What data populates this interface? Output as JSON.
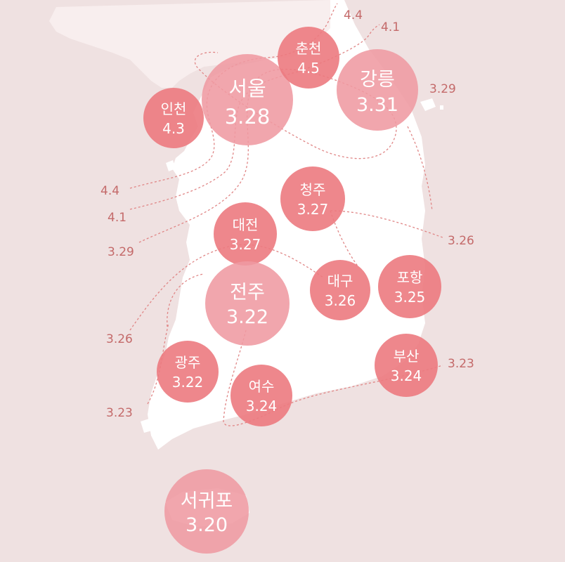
{
  "colors": {
    "background": "#efe1e1",
    "land": "#ffffff",
    "land_north": "#f8eeee",
    "bubble_light": "#ef9aa2",
    "bubble_dark": "#ec7a80",
    "contour": "#e08686",
    "contour_label": "#c46a6a"
  },
  "cities": [
    {
      "id": "seoul",
      "name": "서울",
      "value": "3.28"
    },
    {
      "id": "incheon",
      "name": "인천",
      "value": "4.3"
    },
    {
      "id": "chuncheon",
      "name": "춘천",
      "value": "4.5"
    },
    {
      "id": "gangneung",
      "name": "강릉",
      "value": "3.31"
    },
    {
      "id": "cheongju",
      "name": "청주",
      "value": "3.27"
    },
    {
      "id": "daejeon",
      "name": "대전",
      "value": "3.27"
    },
    {
      "id": "jeonju",
      "name": "전주",
      "value": "3.22"
    },
    {
      "id": "daegu",
      "name": "대구",
      "value": "3.26"
    },
    {
      "id": "pohang",
      "name": "포항",
      "value": "3.25"
    },
    {
      "id": "gwangju",
      "name": "광주",
      "value": "3.22"
    },
    {
      "id": "yeosu",
      "name": "여수",
      "value": "3.24"
    },
    {
      "id": "busan",
      "name": "부산",
      "value": "3.24"
    },
    {
      "id": "seogwipo",
      "name": "서귀포",
      "value": "3.20"
    }
  ],
  "contour_labels": [
    {
      "id": "top-44",
      "text": "4.4"
    },
    {
      "id": "top-41",
      "text": "4.1"
    },
    {
      "id": "top-329",
      "text": "3.29"
    },
    {
      "id": "left-44",
      "text": "4.4"
    },
    {
      "id": "left-41",
      "text": "4.1"
    },
    {
      "id": "left-329",
      "text": "3.29"
    },
    {
      "id": "right-326",
      "text": "3.26"
    },
    {
      "id": "left-326",
      "text": "3.26"
    },
    {
      "id": "right-323",
      "text": "3.23"
    },
    {
      "id": "left-323",
      "text": "3.23"
    }
  ]
}
